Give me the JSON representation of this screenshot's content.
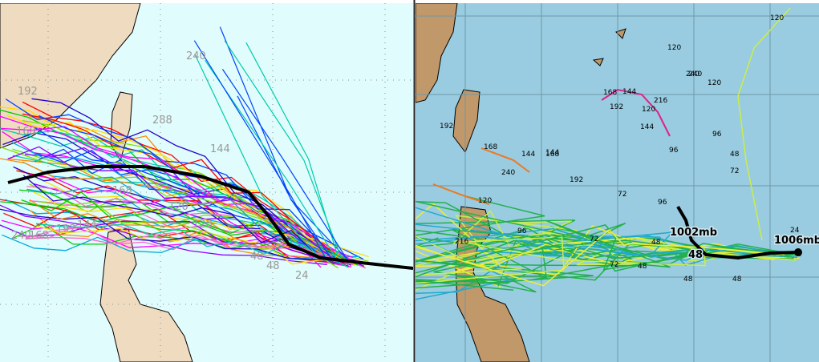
{
  "left_panel": {
    "track_labels": [
      "192",
      "168",
      "240",
      "288",
      "144",
      "240",
      "168",
      "192",
      "144",
      "120",
      "48",
      "24",
      "48",
      "168",
      "120"
    ]
  },
  "right_panel": {
    "track_labels": [
      "120",
      "120",
      "240",
      "168",
      "144",
      "216",
      "192",
      "120",
      "96",
      "144",
      "192",
      "168",
      "144",
      "168",
      "240",
      "192",
      "120",
      "144",
      "96",
      "72",
      "48",
      "72",
      "96",
      "216",
      "240",
      "72",
      "48",
      "24",
      "120",
      "96",
      "48",
      "72",
      "48",
      "48"
    ],
    "pressure_labels": [
      "1002mb",
      "1006mb"
    ],
    "hour_label": "48"
  }
}
